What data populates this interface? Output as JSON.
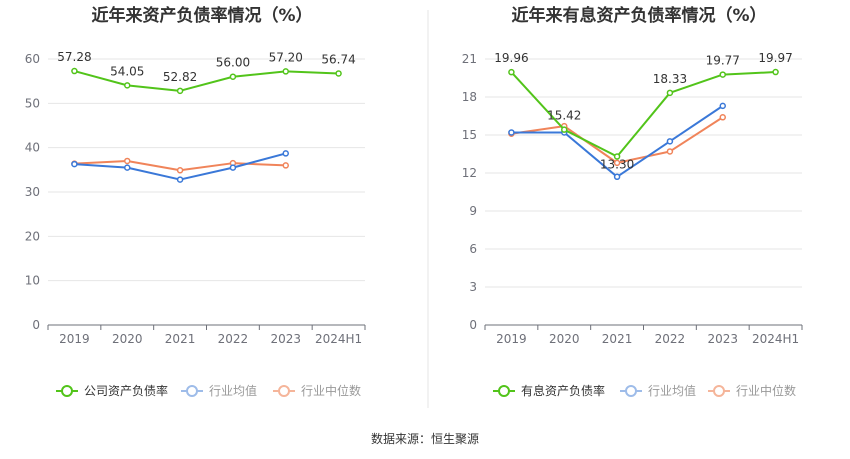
{
  "source_label": "数据来源：恒生聚源",
  "colors": {
    "company": "#52c41a",
    "avg": "#3a78d8",
    "median": "#f0845a",
    "avg_legend": "#9ebce9",
    "median_legend": "#f5b59a"
  },
  "chart_data": [
    {
      "type": "line",
      "title": "近年来资产负债率情况（%）",
      "categories": [
        "2019",
        "2020",
        "2021",
        "2022",
        "2023",
        "2024H1"
      ],
      "ylim": [
        0,
        60
      ],
      "yticks": [
        0,
        10,
        20,
        30,
        40,
        50,
        60
      ],
      "grid": true,
      "legend_position": "bottom",
      "series": [
        {
          "name": "公司资产负债率",
          "color_key": "company",
          "values": [
            57.28,
            54.05,
            52.82,
            56.0,
            57.2,
            56.74
          ],
          "labels": [
            "57.28",
            "54.05",
            "52.82",
            "56.00",
            "57.20",
            "56.74"
          ]
        },
        {
          "name": "行业均值",
          "color_key": "avg",
          "values": [
            36.3,
            35.5,
            32.8,
            35.5,
            38.7,
            null
          ]
        },
        {
          "name": "行业中位数",
          "color_key": "median",
          "values": [
            36.4,
            37.0,
            34.9,
            36.5,
            36.0,
            null
          ]
        }
      ]
    },
    {
      "type": "line",
      "title": "近年来有息资产负债率情况（%）",
      "categories": [
        "2019",
        "2020",
        "2021",
        "2022",
        "2023",
        "2024H1"
      ],
      "ylim": [
        0,
        21
      ],
      "yticks": [
        0,
        3,
        6,
        9,
        12,
        15,
        18,
        21
      ],
      "grid": true,
      "legend_position": "bottom",
      "series": [
        {
          "name": "有息资产负债率",
          "color_key": "company",
          "values": [
            19.96,
            15.42,
            13.3,
            18.33,
            19.77,
            19.97
          ],
          "labels": [
            "19.96",
            "15.42",
            "13.30",
            "18.33",
            "19.77",
            "19.97"
          ]
        },
        {
          "name": "行业均值",
          "color_key": "avg",
          "values": [
            15.2,
            15.2,
            11.7,
            14.5,
            17.3,
            null
          ]
        },
        {
          "name": "行业中位数",
          "color_key": "median",
          "values": [
            15.1,
            15.7,
            12.8,
            13.7,
            16.4,
            null
          ]
        }
      ]
    }
  ]
}
